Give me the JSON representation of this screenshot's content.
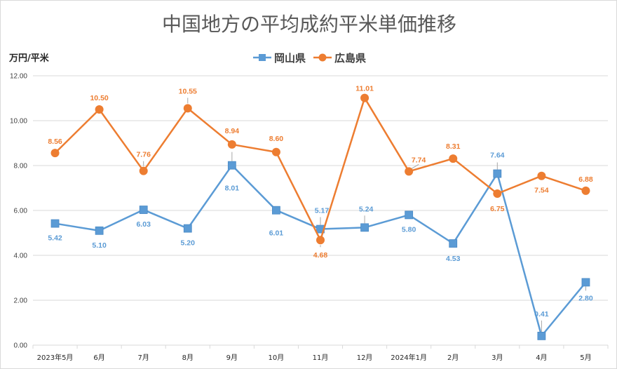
{
  "chart_data": {
    "type": "line",
    "title": "中国地方の平均成約平米単価推移",
    "ylabel": "万円/平米",
    "xlabel": "",
    "categories": [
      "2023年5月",
      "6月",
      "7月",
      "8月",
      "9月",
      "10月",
      "11月",
      "12月",
      "2024年1月",
      "2月",
      "3月",
      "4月",
      "5月"
    ],
    "ylim": [
      0,
      12
    ],
    "yticks": [
      "0.00",
      "2.00",
      "4.00",
      "6.00",
      "8.00",
      "10.00",
      "12.00"
    ],
    "grid": true,
    "legend_position": "top",
    "series": [
      {
        "name": "岡山県",
        "color": "#5b9bd5",
        "marker": "square",
        "values": [
          5.42,
          5.1,
          6.03,
          5.2,
          8.01,
          6.01,
          5.17,
          5.24,
          5.8,
          4.53,
          7.64,
          0.41,
          2.8
        ],
        "labels": [
          "5.42",
          "5.10",
          "6.03",
          "5.20",
          "8.01",
          "6.01",
          "5.17",
          "5.24",
          "5.80",
          "4.53",
          "7.64",
          "0.41",
          "2.80"
        ]
      },
      {
        "name": "広島県",
        "color": "#ed7d31",
        "marker": "circle",
        "values": [
          8.56,
          10.5,
          7.76,
          10.55,
          8.94,
          8.6,
          4.68,
          11.01,
          7.74,
          8.31,
          6.75,
          7.54,
          6.88
        ],
        "labels": [
          "8.56",
          "10.50",
          "7.76",
          "10.55",
          "8.94",
          "8.60",
          "4.68",
          "11.01",
          "7.74",
          "8.31",
          "6.75",
          "7.54",
          "6.88"
        ]
      }
    ]
  }
}
